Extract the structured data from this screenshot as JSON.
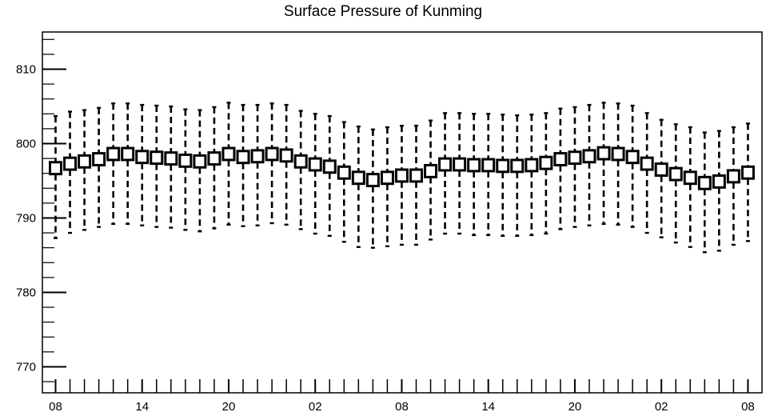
{
  "chart_data": {
    "type": "boxplot",
    "title": "Surface Pressure of Kunming",
    "ylim": [
      766.5,
      815.0
    ],
    "yticks": [
      770,
      780,
      790,
      800,
      810
    ],
    "xtick_labels": [
      "08",
      "14",
      "20",
      "02",
      "08",
      "14",
      "20",
      "02",
      "08"
    ],
    "xtick_positions": [
      0,
      6,
      12,
      18,
      24,
      30,
      36,
      42,
      48
    ],
    "grid": false,
    "series": [
      {
        "box_low": [
          795.9,
          796.5,
          796.8,
          797.1,
          797.8,
          797.8,
          797.4,
          797.3,
          797.2,
          796.9,
          796.8,
          797.2,
          797.8,
          797.4,
          797.5,
          797.8,
          797.6,
          796.8,
          796.4,
          796.1,
          795.3,
          794.6,
          794.3,
          794.6,
          794.9,
          794.9,
          795.5,
          796.4,
          796.4,
          796.3,
          796.3,
          796.2,
          796.2,
          796.3,
          796.6,
          797.1,
          797.3,
          797.5,
          797.9,
          797.8,
          797.4,
          796.5,
          795.7,
          795.1,
          794.6,
          793.9,
          794.1,
          794.8,
          795.3
        ],
        "box_high": [
          797.5,
          798.1,
          798.4,
          798.7,
          799.4,
          799.4,
          799.0,
          798.9,
          798.8,
          798.5,
          798.4,
          798.8,
          799.4,
          799.0,
          799.1,
          799.4,
          799.2,
          798.4,
          798.0,
          797.7,
          796.9,
          796.2,
          795.9,
          796.2,
          796.5,
          796.5,
          797.1,
          798.0,
          798.0,
          797.9,
          797.9,
          797.8,
          797.8,
          797.9,
          798.2,
          798.7,
          798.9,
          799.1,
          799.5,
          799.4,
          799.0,
          798.1,
          797.3,
          796.7,
          796.2,
          795.5,
          795.7,
          796.4,
          796.9
        ],
        "whisker_low": [
          787.3,
          788.0,
          788.4,
          788.8,
          789.2,
          789.2,
          789.0,
          788.8,
          788.7,
          788.4,
          788.2,
          788.6,
          789.1,
          788.9,
          789.0,
          789.3,
          789.1,
          788.5,
          787.9,
          787.6,
          786.8,
          786.1,
          786.0,
          786.2,
          786.4,
          786.4,
          787.1,
          787.9,
          787.9,
          787.7,
          787.7,
          787.6,
          787.6,
          787.7,
          787.9,
          788.5,
          788.8,
          789.0,
          789.2,
          789.1,
          788.8,
          788.0,
          787.4,
          786.7,
          786.1,
          785.4,
          785.6,
          786.4,
          786.9
        ],
        "whisker_high": [
          803.7,
          804.3,
          804.5,
          804.8,
          805.4,
          805.4,
          805.2,
          805.1,
          805.0,
          804.6,
          804.5,
          804.9,
          805.5,
          805.2,
          805.2,
          805.4,
          805.2,
          804.4,
          804.0,
          803.7,
          802.9,
          802.3,
          801.9,
          802.2,
          802.4,
          802.4,
          803.1,
          804.1,
          804.1,
          804.0,
          804.0,
          803.9,
          803.8,
          803.9,
          804.1,
          804.7,
          804.9,
          805.2,
          805.5,
          805.4,
          805.1,
          804.1,
          803.2,
          802.6,
          802.2,
          801.5,
          801.7,
          802.2,
          802.7
        ]
      }
    ]
  }
}
